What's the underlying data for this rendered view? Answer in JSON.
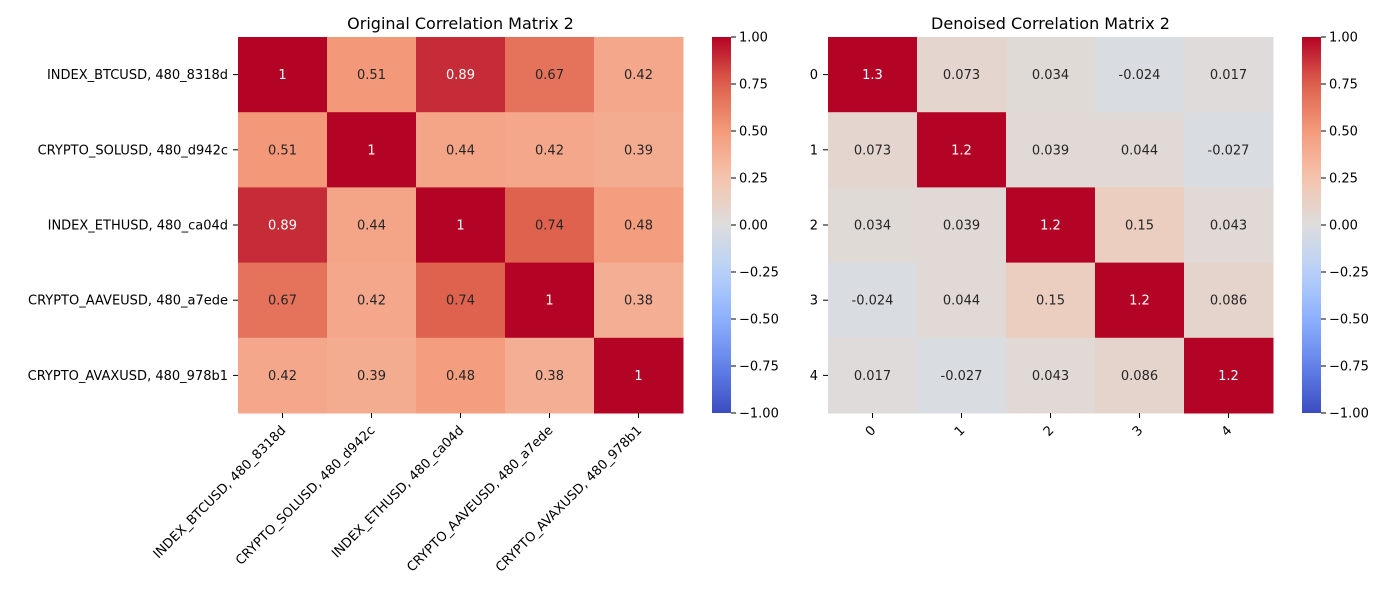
{
  "chart_data": [
    {
      "type": "heatmap",
      "title": "Original Correlation Matrix 2",
      "xlabel": "",
      "ylabel": "",
      "x_labels": [
        "INDEX_BTCUSD, 480_8318d",
        "CRYPTO_SOLUSD, 480_d942c",
        "INDEX_ETHUSD, 480_ca04d",
        "CRYPTO_AAVEUSD, 480_a7ede",
        "CRYPTO_AVAXUSD, 480_978b1"
      ],
      "y_labels": [
        "INDEX_BTCUSD, 480_8318d",
        "CRYPTO_SOLUSD, 480_d942c",
        "INDEX_ETHUSD, 480_ca04d",
        "CRYPTO_AAVEUSD, 480_a7ede",
        "CRYPTO_AVAXUSD, 480_978b1"
      ],
      "values": [
        [
          1,
          0.51,
          0.89,
          0.67,
          0.42
        ],
        [
          0.51,
          1,
          0.44,
          0.42,
          0.39
        ],
        [
          0.89,
          0.44,
          1,
          0.74,
          0.48
        ],
        [
          0.67,
          0.42,
          0.74,
          1,
          0.38
        ],
        [
          0.42,
          0.39,
          0.48,
          0.38,
          1
        ]
      ],
      "value_labels": [
        [
          "1",
          "0.51",
          "0.89",
          "0.67",
          "0.42"
        ],
        [
          "0.51",
          "1",
          "0.44",
          "0.42",
          "0.39"
        ],
        [
          "0.89",
          "0.44",
          "1",
          "0.74",
          "0.48"
        ],
        [
          "0.67",
          "0.42",
          "0.74",
          "1",
          "0.38"
        ],
        [
          "0.42",
          "0.39",
          "0.48",
          "0.38",
          "1"
        ]
      ],
      "colormap": "coolwarm",
      "vmin": -1,
      "vmax": 1,
      "colorbar_ticks": [
        1,
        0.75,
        0.5,
        0.25,
        0,
        -0.25,
        -0.5,
        -0.75,
        -1
      ],
      "colorbar_tick_labels": [
        "1.00",
        "0.75",
        "0.50",
        "0.25",
        "0.00",
        "−0.25",
        "−0.50",
        "−0.75",
        "−1.00"
      ],
      "x_tick_rotation": 45
    },
    {
      "type": "heatmap",
      "title": "Denoised Correlation Matrix 2",
      "xlabel": "",
      "ylabel": "",
      "x_labels": [
        "0",
        "1",
        "2",
        "3",
        "4"
      ],
      "y_labels": [
        "0",
        "1",
        "2",
        "3",
        "4"
      ],
      "values": [
        [
          1.3,
          0.073,
          0.034,
          -0.024,
          0.017
        ],
        [
          0.073,
          1.2,
          0.039,
          0.044,
          -0.027
        ],
        [
          0.034,
          0.039,
          1.2,
          0.15,
          0.043
        ],
        [
          -0.024,
          0.044,
          0.15,
          1.2,
          0.086
        ],
        [
          0.017,
          -0.027,
          0.043,
          0.086,
          1.2
        ]
      ],
      "value_labels": [
        [
          "1.3",
          "0.073",
          "0.034",
          "-0.024",
          "0.017"
        ],
        [
          "0.073",
          "1.2",
          "0.039",
          "0.044",
          "-0.027"
        ],
        [
          "0.034",
          "0.039",
          "1.2",
          "0.15",
          "0.043"
        ],
        [
          "-0.024",
          "0.044",
          "0.15",
          "1.2",
          "0.086"
        ],
        [
          "0.017",
          "-0.027",
          "0.043",
          "0.086",
          "1.2"
        ]
      ],
      "colormap": "coolwarm",
      "vmin": -1,
      "vmax": 1,
      "colorbar_ticks": [
        1,
        0.75,
        0.5,
        0.25,
        0,
        -0.25,
        -0.5,
        -0.75,
        -1
      ],
      "colorbar_tick_labels": [
        "1.00",
        "0.75",
        "0.50",
        "0.25",
        "0.00",
        "−0.25",
        "−0.50",
        "−0.75",
        "−1.00"
      ],
      "x_tick_rotation": 45
    }
  ]
}
